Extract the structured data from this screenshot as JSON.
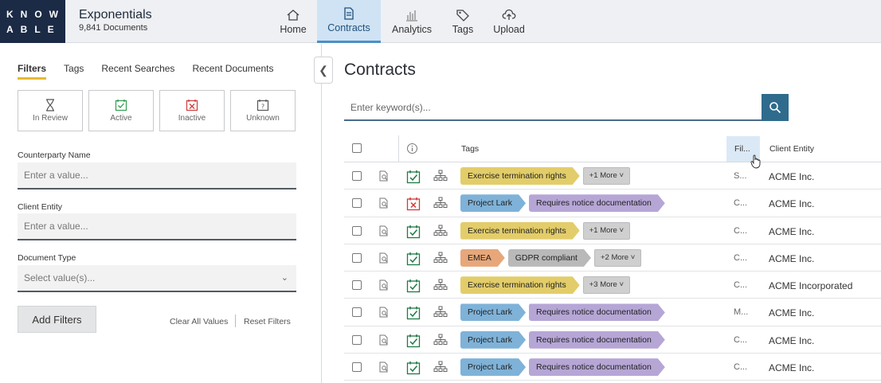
{
  "logo": {
    "line1": "KNOW",
    "line2": "ABLE"
  },
  "brand": {
    "title": "Exponentials",
    "subtitle": "9,841 Documents"
  },
  "nav": [
    {
      "label": "Home",
      "icon": "home-icon"
    },
    {
      "label": "Contracts",
      "icon": "document-icon",
      "active": true
    },
    {
      "label": "Analytics",
      "icon": "bar-chart-icon"
    },
    {
      "label": "Tags",
      "icon": "tag-icon"
    },
    {
      "label": "Upload",
      "icon": "cloud-upload-icon"
    }
  ],
  "filters": {
    "tabs": [
      "Filters",
      "Tags",
      "Recent Searches",
      "Recent Documents"
    ],
    "statuses": [
      "In Review",
      "Active",
      "Inactive",
      "Unknown"
    ],
    "counterparty_label": "Counterparty Name",
    "counterparty_placeholder": "Enter a value...",
    "client_label": "Client Entity",
    "client_placeholder": "Enter a value...",
    "doctype_label": "Document Type",
    "doctype_placeholder": "Select value(s)...",
    "add_filters": "Add Filters",
    "clear_all": "Clear All Values",
    "reset": "Reset Filters"
  },
  "main": {
    "title": "Contracts",
    "search_placeholder": "Enter keyword(s)...",
    "headers": {
      "tags": "Tags",
      "file": "Fil...",
      "client": "Client Entity"
    },
    "rows": [
      {
        "status": "active",
        "tags": [
          {
            "label": "Exercise termination rights",
            "color": "#e3cd6a"
          }
        ],
        "more": "+1 More",
        "file": "S...",
        "client": "ACME Inc."
      },
      {
        "status": "inactive",
        "tags": [
          {
            "label": "Project Lark",
            "color": "#7fb2d8"
          },
          {
            "label": "Requires notice documentation",
            "color": "#b6a6d6"
          }
        ],
        "more": "",
        "file": "C...",
        "client": "ACME Inc."
      },
      {
        "status": "active",
        "tags": [
          {
            "label": "Exercise termination rights",
            "color": "#e3cd6a"
          }
        ],
        "more": "+1 More",
        "file": "C...",
        "client": "ACME Inc."
      },
      {
        "status": "active",
        "tags": [
          {
            "label": "EMEA",
            "color": "#e7a77a"
          },
          {
            "label": "GDPR compliant",
            "color": "#b9b9b9"
          }
        ],
        "more": "+2 More",
        "file": "C...",
        "client": "ACME Inc."
      },
      {
        "status": "active",
        "tags": [
          {
            "label": "Exercise termination rights",
            "color": "#e3cd6a"
          }
        ],
        "more": "+3 More",
        "file": "C...",
        "client": "ACME Incorporated"
      },
      {
        "status": "active",
        "tags": [
          {
            "label": "Project Lark",
            "color": "#7fb2d8"
          },
          {
            "label": "Requires notice documentation",
            "color": "#b6a6d6"
          }
        ],
        "more": "",
        "file": "M...",
        "client": "ACME Inc."
      },
      {
        "status": "active",
        "tags": [
          {
            "label": "Project Lark",
            "color": "#7fb2d8"
          },
          {
            "label": "Requires notice documentation",
            "color": "#b6a6d6"
          }
        ],
        "more": "",
        "file": "C...",
        "client": "ACME Inc."
      },
      {
        "status": "active",
        "tags": [
          {
            "label": "Project Lark",
            "color": "#7fb2d8"
          },
          {
            "label": "Requires notice documentation",
            "color": "#b6a6d6"
          }
        ],
        "more": "",
        "file": "C...",
        "client": "ACME Inc."
      }
    ]
  },
  "colors": {
    "logo_bg": "#1b2a45",
    "accent": "#2f6b8c",
    "active_tab": "#e8b930",
    "active_status": "#2e9e4f",
    "inactive_status": "#d03a3a"
  }
}
